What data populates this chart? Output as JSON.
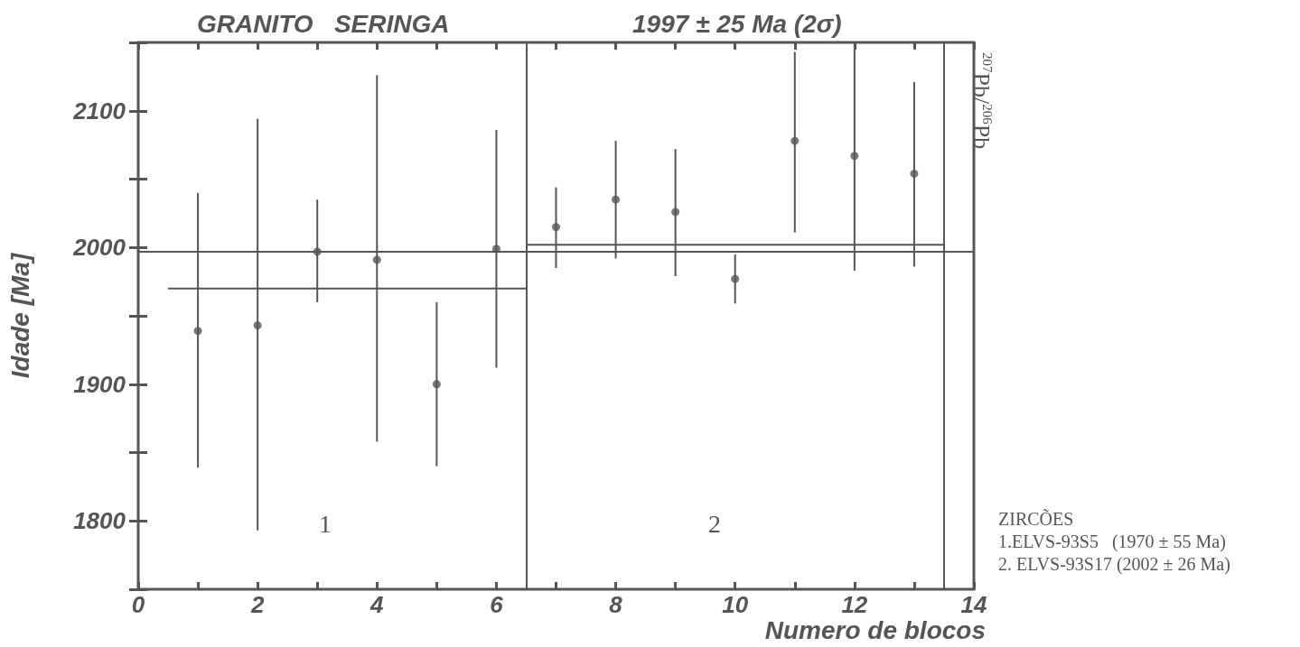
{
  "chart_data": {
    "type": "scatter",
    "title": "GRANITO   SERINGA",
    "subtitle": "1997 ± 25 Ma (2σ)",
    "xlabel": "Numero de blocos",
    "ylabel": "Idade [Ma]",
    "x": [
      1,
      2,
      3,
      4,
      5,
      6,
      7,
      8,
      9,
      10,
      11,
      12,
      13
    ],
    "series": [
      {
        "color": "#555555",
        "values": [
          1939,
          1943,
          1997,
          1991,
          1900,
          1999,
          2015,
          2035,
          2026,
          1977,
          2078,
          2067,
          2054
        ],
        "errors": [
          [
            1839,
            2040
          ],
          [
            1793,
            2094
          ],
          [
            1960,
            2035
          ],
          [
            1858,
            2126
          ],
          [
            1840,
            1960
          ],
          [
            1912,
            2086
          ],
          [
            1985,
            2044
          ],
          [
            1992,
            2078
          ],
          [
            1979,
            2072
          ],
          [
            1959,
            1995
          ],
          [
            2011,
            2143
          ],
          [
            1983,
            2150
          ],
          [
            1986,
            2121
          ]
        ]
      },
      {
        "type": "line",
        "color": "#555555",
        "x": [
          0.5,
          6.5
        ],
        "values": [
          1970,
          1970
        ],
        "marker": "none"
      },
      {
        "type": "line",
        "color": "#555555",
        "x": [
          6.5,
          13.5
        ],
        "values": [
          2002,
          2002
        ],
        "marker": "none"
      }
    ],
    "ref_lines": [
      {
        "axis": "y",
        "value": 1997,
        "color": "#555555"
      },
      {
        "axis": "x",
        "value": 6.5,
        "color": "#555555"
      },
      {
        "axis": "x",
        "value": 13.5,
        "color": "#555555"
      }
    ],
    "annotations": [
      "1",
      "2",
      "$^{207}$Pb/$^{206}$Pb",
      "ZIRCÕES",
      "1.ELVS-93S5   (1970 ± 55 Ma)",
      "2. ELVS-93S17 (2002 ± 26 Ma)"
    ],
    "xlim": [
      0,
      14
    ],
    "xticks": [
      0,
      {
        "value": 1,
        "label": null
      },
      2,
      {
        "value": 3,
        "label": null
      },
      4,
      {
        "value": 5,
        "label": null
      },
      6,
      {
        "value": 7,
        "label": null
      },
      8,
      {
        "value": 9,
        "label": null
      },
      10,
      {
        "value": 11,
        "label": null
      },
      12,
      {
        "value": 13,
        "label": null
      },
      14
    ],
    "ylim": [
      1750,
      2150
    ],
    "yticks": [
      {
        "value": 1750,
        "label": null
      },
      1800,
      {
        "value": 1850,
        "label": null
      },
      1900,
      {
        "value": 1950,
        "label": null
      },
      2000,
      {
        "value": 2050,
        "label": null
      },
      2100,
      {
        "value": 2150,
        "label": null
      }
    ],
    "marker": "circle",
    "grid": false
  }
}
